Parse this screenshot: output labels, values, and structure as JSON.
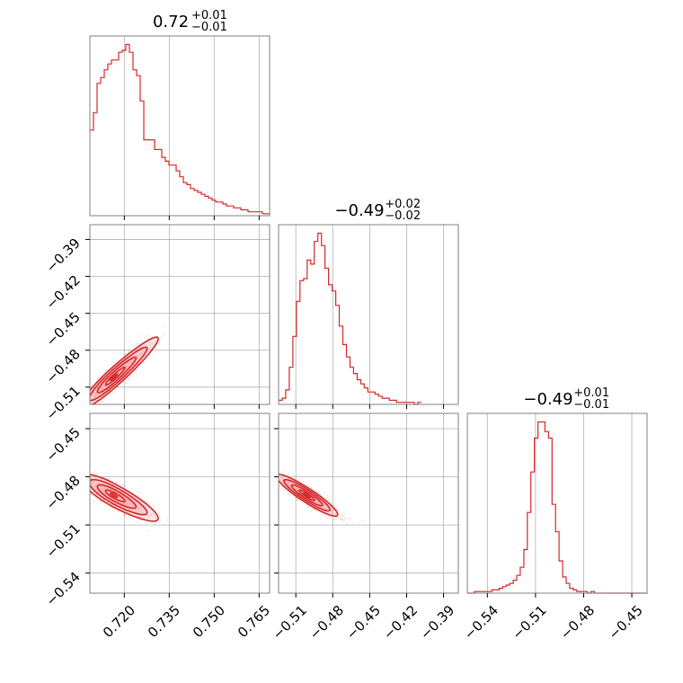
{
  "chart_data": {
    "type": "corner",
    "color": "#d62728",
    "fill_color": "#f4b2b6",
    "grid": true,
    "params": [
      {
        "range": [
          0.7085,
          0.7685
        ],
        "ticks": [
          "0.720",
          "0.735",
          "0.750",
          "0.765"
        ],
        "tick_values": [
          0.72,
          0.735,
          0.75,
          0.765
        ]
      },
      {
        "range": [
          -0.524,
          -0.378
        ],
        "ticks": [
          "−0.51",
          "−0.48",
          "−0.45",
          "−0.42",
          "−0.39"
        ],
        "tick_values": [
          -0.51,
          -0.48,
          -0.45,
          -0.42,
          -0.39
        ]
      },
      {
        "range": [
          -0.5525,
          -0.4405
        ],
        "ticks": [
          "−0.54",
          "−0.51",
          "−0.48",
          "−0.45"
        ],
        "tick_values": [
          -0.54,
          -0.51,
          -0.48,
          -0.45
        ]
      }
    ],
    "titles": [
      {
        "value": "0.72",
        "plus": "+0.01",
        "minus": "−0.01"
      },
      {
        "value": "−0.49",
        "plus": "+0.02",
        "minus": "−0.02"
      },
      {
        "value": "−0.49",
        "plus": "+0.01",
        "minus": "−0.01"
      }
    ],
    "histograms": [
      {
        "bin_start": 0.7085,
        "bin_width": 0.0012,
        "counts": [
          44,
          53,
          68,
          71,
          75,
          78,
          80,
          80,
          84,
          85,
          88,
          84,
          75,
          72,
          59,
          39,
          39,
          39,
          34,
          34,
          30,
          28,
          26,
          26,
          23,
          20,
          17,
          16,
          14,
          13,
          12,
          11,
          10,
          9,
          8,
          7,
          7,
          6,
          5,
          5,
          4,
          4,
          3,
          3,
          2,
          2,
          2,
          2,
          1,
          1
        ]
      },
      {
        "bin_start": -0.524,
        "bin_width": 0.0029,
        "counts": [
          2,
          3,
          7,
          18,
          33,
          50,
          60,
          61,
          70,
          68,
          79,
          83,
          77,
          66,
          58,
          55,
          48,
          38,
          29,
          23,
          18,
          15,
          12,
          10,
          8,
          6,
          6,
          5,
          4,
          3,
          3,
          2,
          2,
          1,
          1,
          1,
          1,
          1,
          0,
          1
        ]
      },
      {
        "bin_start": -0.5525,
        "bin_width": 0.0022,
        "counts": [
          0,
          0,
          1,
          1,
          1,
          1,
          1,
          2,
          2,
          3,
          4,
          5,
          6,
          8,
          11,
          16,
          27,
          50,
          75,
          96,
          106,
          106,
          100,
          96,
          55,
          38,
          20,
          10,
          6,
          3,
          2,
          1,
          1,
          1,
          0,
          1,
          0,
          0,
          0,
          0,
          0,
          0,
          0,
          0,
          0,
          0,
          0,
          0,
          0,
          0,
          0
        ]
      }
    ],
    "pairs": [
      {
        "x": 0,
        "y": 1,
        "mean": [
          0.7165,
          -0.502
        ],
        "sd": [
          0.0055,
          0.0125
        ],
        "corr": 0.93
      },
      {
        "x": 0,
        "y": 2,
        "mean": [
          0.7165,
          -0.4915
        ],
        "sd": [
          0.0055,
          0.0065
        ],
        "corr": -0.82
      },
      {
        "x": 1,
        "y": 2,
        "mean": [
          -0.501,
          -0.4915
        ],
        "sd": [
          0.0125,
          0.0065
        ],
        "corr": -0.92
      }
    ]
  }
}
